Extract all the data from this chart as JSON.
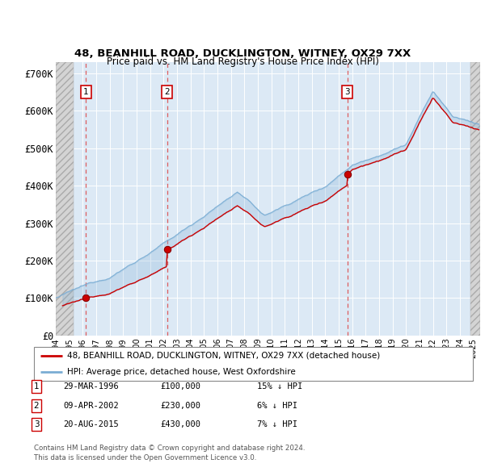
{
  "title1": "48, BEANHILL ROAD, DUCKLINGTON, WITNEY, OX29 7XX",
  "title2": "Price paid vs. HM Land Registry's House Price Index (HPI)",
  "ylim": [
    0,
    730000
  ],
  "yticks": [
    0,
    100000,
    200000,
    300000,
    400000,
    500000,
    600000,
    700000
  ],
  "ytick_labels": [
    "£0",
    "£100K",
    "£200K",
    "£300K",
    "£400K",
    "£500K",
    "£600K",
    "£700K"
  ],
  "xmin": 1994.0,
  "xmax": 2025.5,
  "purchases": [
    {
      "year": 1996.24,
      "price": 100000,
      "label": "1"
    },
    {
      "year": 2002.27,
      "price": 230000,
      "label": "2"
    },
    {
      "year": 2015.64,
      "price": 430000,
      "label": "3"
    }
  ],
  "legend_line1": "48, BEANHILL ROAD, DUCKLINGTON, WITNEY, OX29 7XX (detached house)",
  "legend_line2": "HPI: Average price, detached house, West Oxfordshire",
  "table": [
    {
      "num": "1",
      "date": "29-MAR-1996",
      "price": "£100,000",
      "hpi": "15% ↓ HPI"
    },
    {
      "num": "2",
      "date": "09-APR-2002",
      "price": "£230,000",
      "hpi": "6% ↓ HPI"
    },
    {
      "num": "3",
      "date": "20-AUG-2015",
      "price": "£430,000",
      "hpi": "7% ↓ HPI"
    }
  ],
  "footnote1": "Contains HM Land Registry data © Crown copyright and database right 2024.",
  "footnote2": "This data is licensed under the Open Government Licence v3.0.",
  "plot_bg": "#dce9f5",
  "red_line_color": "#cc0000",
  "blue_line_color": "#7aadd4",
  "dot_color": "#cc0000",
  "dashed_line_color": "#dd4444",
  "box_color": "#cc0000",
  "fill_blue_alpha": 0.25,
  "fill_red_alpha": 0.25
}
